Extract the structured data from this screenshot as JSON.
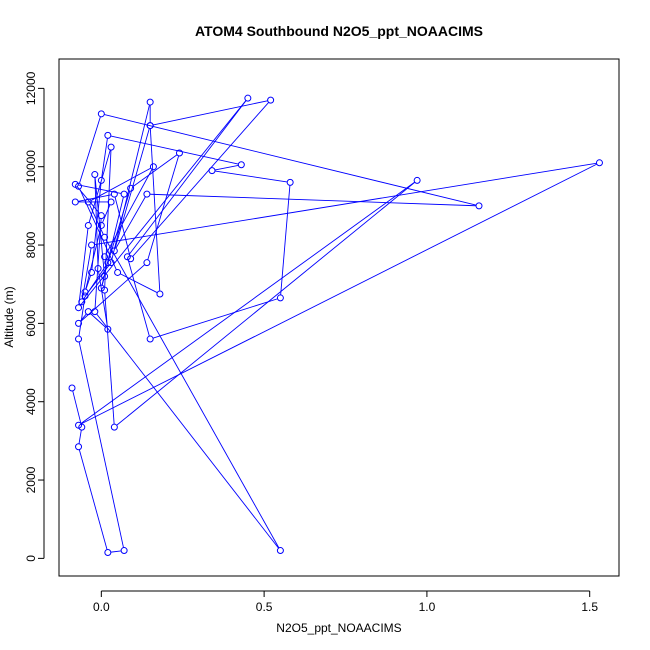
{
  "chart_data": {
    "type": "line",
    "title": "ATOM4 Southbound N2O5_ppt_NOAACIMS",
    "xlabel": "N2O5_ppt_NOAACIMS",
    "ylabel": "Altitude (m)",
    "xlim": [
      -0.13,
      1.59
    ],
    "ylim": [
      -450,
      12750
    ],
    "xticks": [
      {
        "value": 0,
        "label": "0.0"
      },
      {
        "value": 0.5,
        "label": "0.5"
      },
      {
        "value": 1.0,
        "label": "1.0"
      },
      {
        "value": 1.5,
        "label": "1.5"
      }
    ],
    "yticks": [
      {
        "value": 0,
        "label": "0"
      },
      {
        "value": 2000,
        "label": "2000"
      },
      {
        "value": 4000,
        "label": "4000"
      },
      {
        "value": 6000,
        "label": "6000"
      },
      {
        "value": 8000,
        "label": "8000"
      },
      {
        "value": 10000,
        "label": "10000"
      },
      {
        "value": 12000,
        "label": "12000"
      }
    ],
    "line_color": "#0000ff",
    "marker": "open-circle",
    "grid": false,
    "series": [
      {
        "points": [
          [
            -0.09,
            4350
          ],
          [
            -0.06,
            3350
          ],
          [
            -0.07,
            2850
          ],
          [
            0.02,
            150
          ],
          [
            0.07,
            200
          ],
          [
            -0.07,
            5600
          ],
          [
            -0.05,
            6700
          ],
          [
            0.03,
            7550
          ],
          [
            0.15,
            11650
          ],
          [
            0.15,
            11050
          ],
          [
            0.04,
            7850
          ],
          [
            0.14,
            9300
          ],
          [
            1.16,
            9000
          ],
          [
            0.0,
            11350
          ],
          [
            -0.07,
            9500
          ],
          [
            0.05,
            7300
          ],
          [
            0.18,
            6750
          ],
          [
            0.15,
            11050
          ],
          [
            0.52,
            11700
          ],
          [
            0.09,
            7650
          ],
          [
            0.04,
            9300
          ],
          [
            -0.08,
            9100
          ],
          [
            0.03,
            9100
          ],
          [
            0.0,
            8500
          ],
          [
            -0.05,
            6800
          ],
          [
            -0.03,
            7300
          ],
          [
            0.0,
            9650
          ],
          [
            0.02,
            10800
          ],
          [
            0.43,
            10050
          ],
          [
            0.34,
            9900
          ],
          [
            0.58,
            9600
          ],
          [
            0.55,
            6650
          ],
          [
            0.15,
            5600
          ],
          [
            0.08,
            7700
          ],
          [
            0.45,
            11750
          ],
          [
            -0.07,
            6400
          ],
          [
            -0.04,
            8500
          ],
          [
            0.03,
            10500
          ],
          [
            0.01,
            6850
          ],
          [
            0.04,
            3350
          ],
          [
            0.97,
            9650
          ],
          [
            -0.07,
            3400
          ],
          [
            1.53,
            10100
          ],
          [
            -0.03,
            8000
          ],
          [
            -0.06,
            6550
          ],
          [
            0.02,
            7550
          ],
          [
            0.09,
            9450
          ],
          [
            0.24,
            10350
          ],
          [
            0.14,
            7550
          ],
          [
            -0.07,
            6000
          ],
          [
            -0.04,
            6300
          ],
          [
            0.02,
            5850
          ],
          [
            -0.01,
            7400
          ],
          [
            -0.02,
            9800
          ],
          [
            0.01,
            7200
          ],
          [
            0.0,
            6900
          ],
          [
            0.07,
            9300
          ],
          [
            -0.08,
            9550
          ],
          [
            0.0,
            8750
          ],
          [
            -0.02,
            6300
          ],
          [
            0.55,
            200
          ],
          [
            0.01,
            8200
          ],
          [
            -0.04,
            9100
          ],
          [
            0.16,
            10000
          ],
          [
            0.01,
            7700
          ]
        ]
      }
    ]
  }
}
